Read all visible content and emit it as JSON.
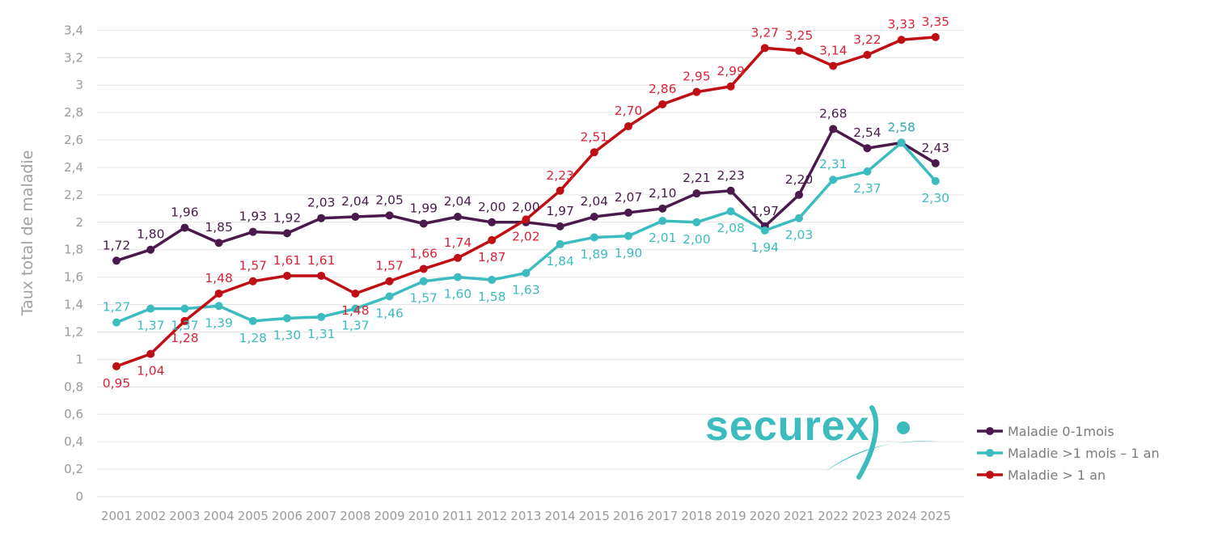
{
  "chart_data": {
    "type": "line",
    "ylabel": "Taux total de maladie",
    "ylim": [
      0,
      3.4
    ],
    "yticks": [
      "0",
      "0,2",
      "0,4",
      "0,6",
      "0,8",
      "1",
      "1,2",
      "1,4",
      "1,6",
      "1,8",
      "2",
      "2,2",
      "2,4",
      "2,6",
      "2,8",
      "3",
      "3,2",
      "3,4"
    ],
    "grid": true,
    "legend_position": "bottom-right",
    "categories": [
      "2001",
      "2002",
      "2003",
      "2004",
      "2005",
      "2006",
      "2007",
      "2008",
      "2009",
      "2010",
      "2011",
      "2012",
      "2013",
      "2014",
      "2015",
      "2016",
      "2017",
      "2018",
      "2019",
      "2020",
      "2021",
      "2022",
      "2023",
      "2024",
      "2025"
    ],
    "series": [
      {
        "name": "Maladie 0-1mois",
        "color": "#4a1a4d",
        "values": [
          1.72,
          1.8,
          1.96,
          1.85,
          1.93,
          1.92,
          2.03,
          2.04,
          2.05,
          1.99,
          2.04,
          2.0,
          2.0,
          1.97,
          2.04,
          2.07,
          2.1,
          2.21,
          2.23,
          1.97,
          2.2,
          2.68,
          2.54,
          2.58,
          2.43
        ],
        "labels": [
          "1,72",
          "1,80",
          "1,96",
          "1,85",
          "1,93",
          "1,92",
          "2,03",
          "2,04",
          "2,05",
          "1,99",
          "2,04",
          "2,00",
          "2,00",
          "1,97",
          "2,04",
          "2,07",
          "2,10",
          "2,21",
          "2,23",
          "1,97",
          "2,20",
          "2,68",
          "2,54",
          "2,58",
          "2,43"
        ]
      },
      {
        "name": "Maladie >1 mois – 1 an",
        "color": "#3cbcbf",
        "values": [
          1.27,
          1.37,
          1.37,
          1.39,
          1.28,
          1.3,
          1.31,
          1.37,
          1.46,
          1.57,
          1.6,
          1.58,
          1.63,
          1.84,
          1.89,
          1.9,
          2.01,
          2.0,
          2.08,
          1.94,
          2.03,
          2.31,
          2.37,
          2.58,
          2.3
        ],
        "labels": [
          "1,27",
          "1,37",
          "1,37",
          "1,39",
          "1,28",
          "1,30",
          "1,31",
          "1,37",
          "1,46",
          "1,57",
          "1,60",
          "1,58",
          "1,63",
          "1,84",
          "1,89",
          "1,90",
          "2,01",
          "2,00",
          "2,08",
          "1,94",
          "2,03",
          "2,31",
          "2,37",
          "2,58",
          "2,30"
        ]
      },
      {
        "name": "Maladie > 1 an",
        "color": "#c00f14",
        "label_color": "#d9243a",
        "values": [
          0.95,
          1.04,
          1.28,
          1.48,
          1.57,
          1.61,
          1.61,
          1.48,
          1.57,
          1.66,
          1.74,
          1.87,
          2.02,
          2.23,
          2.51,
          2.7,
          2.86,
          2.95,
          2.99,
          3.27,
          3.25,
          3.14,
          3.22,
          3.33,
          3.35
        ],
        "labels": [
          "0,95",
          "1,04",
          "1,28",
          "1,48",
          "1,57",
          "1,61",
          "1,61",
          "1,48",
          "1,57",
          "1,66",
          "1,74",
          "1,87",
          "2,02",
          "2,23",
          "2,51",
          "2,70",
          "2,86",
          "2,95",
          "2,99",
          "3,27",
          "3,25",
          "3,14",
          "3,22",
          "3,33",
          "3,35"
        ]
      }
    ]
  },
  "logo": {
    "text": "securex",
    "color": "#3cbcbf"
  }
}
